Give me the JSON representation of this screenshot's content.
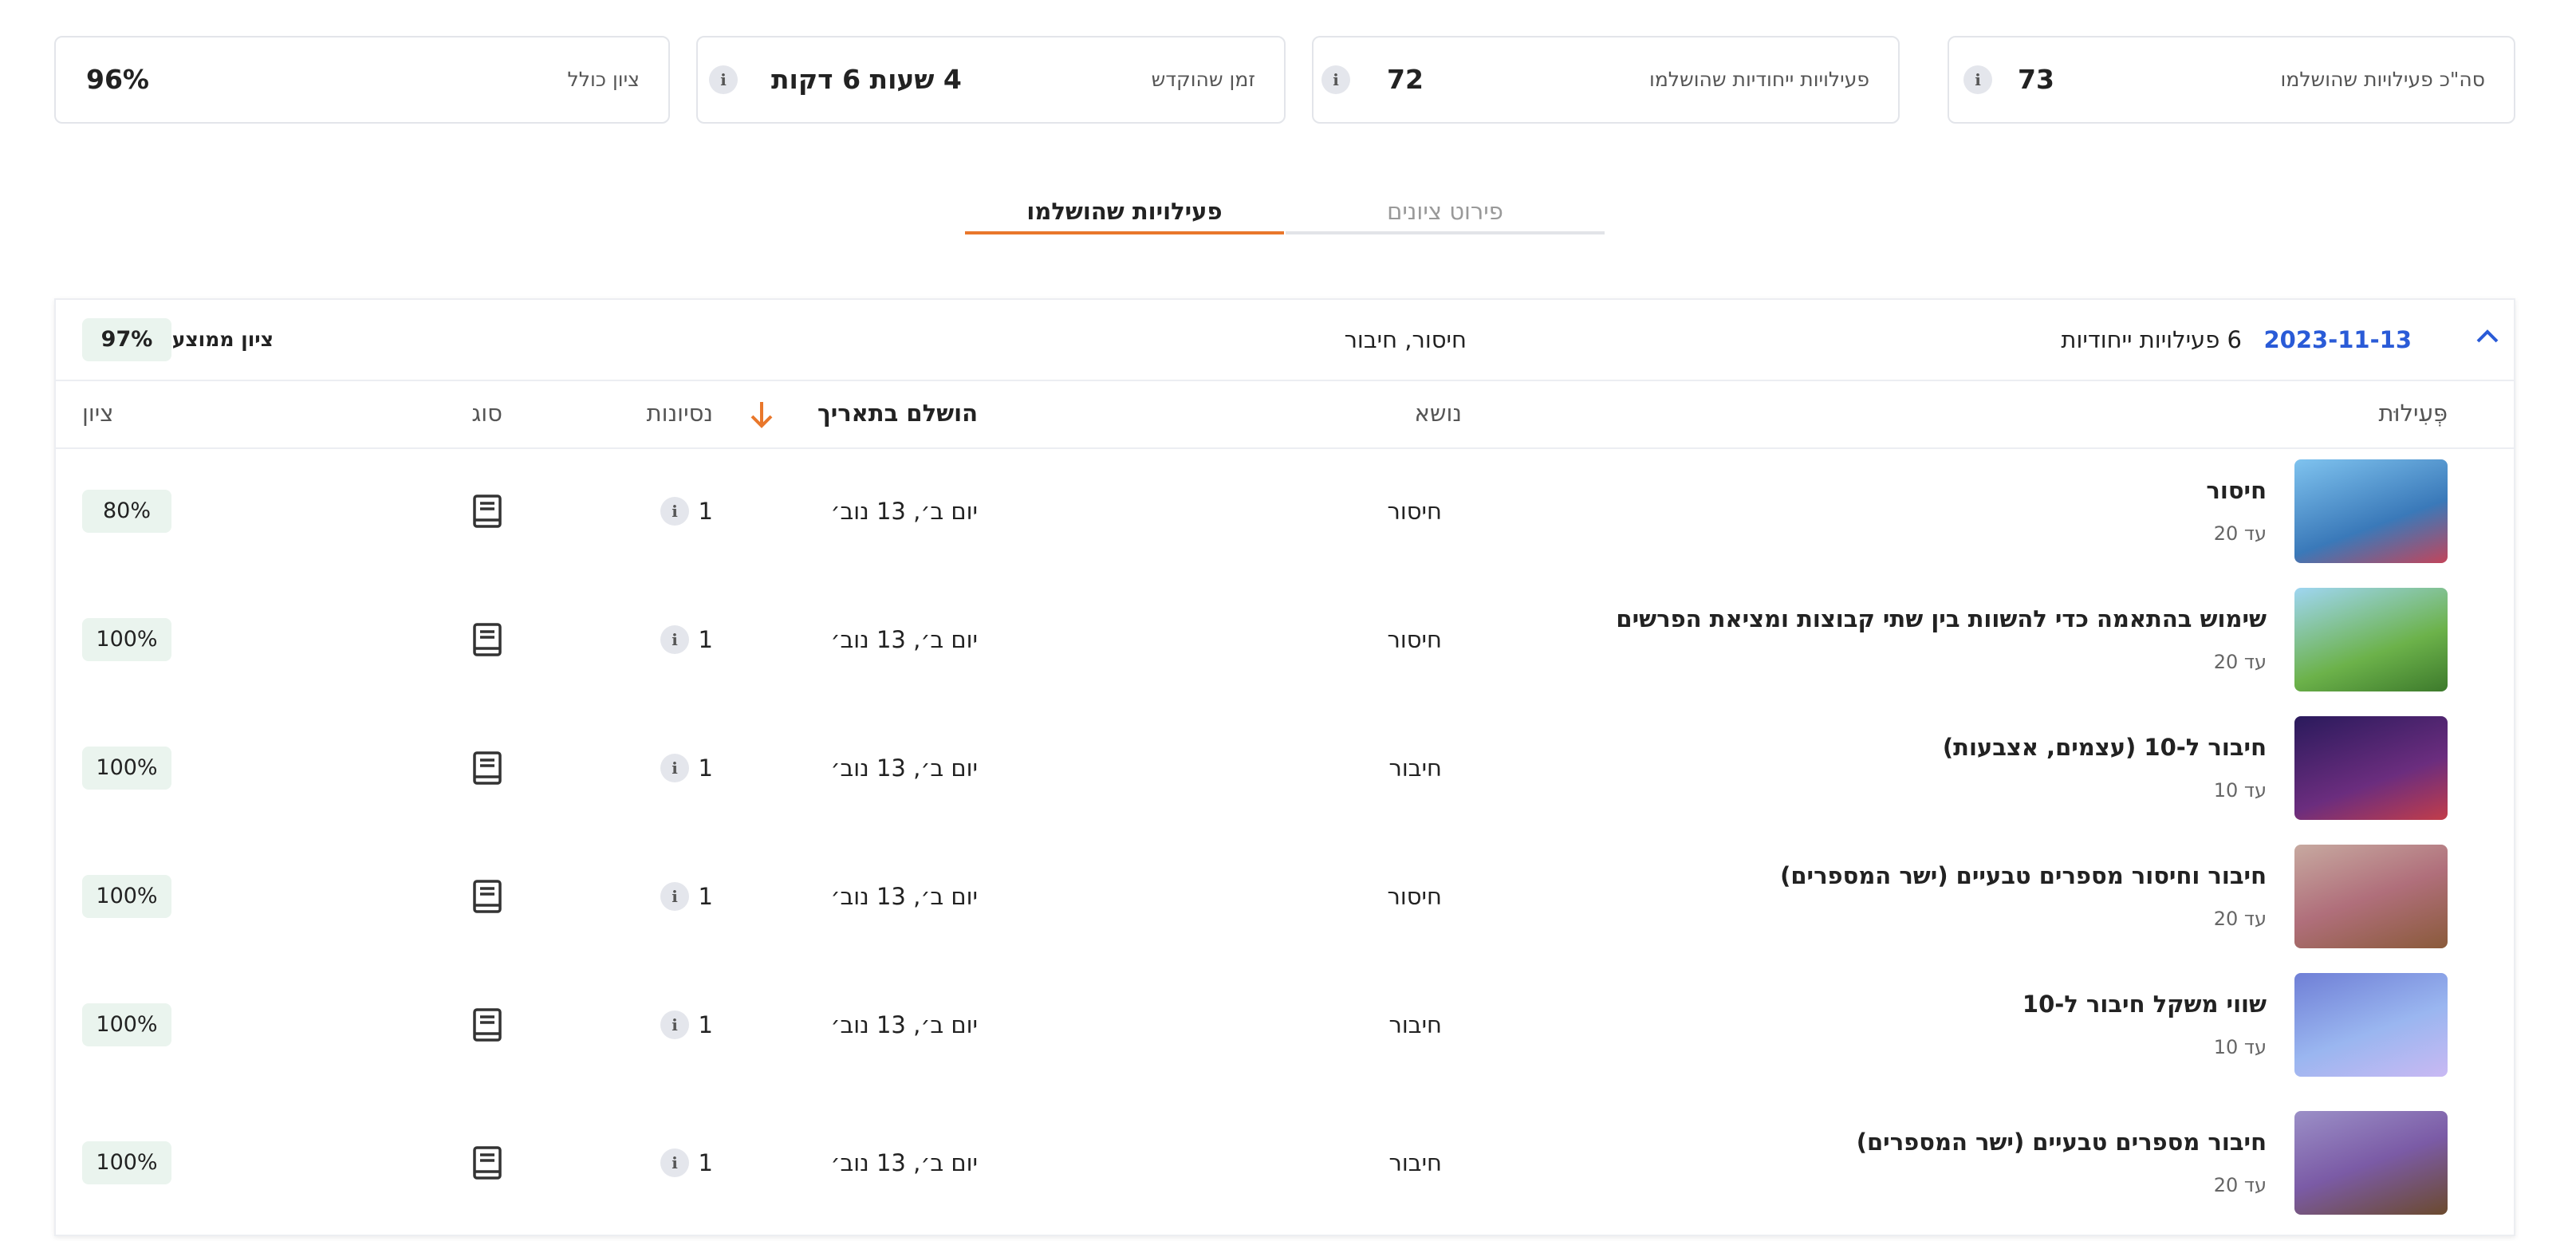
{
  "stats": [
    {
      "label": "סה\"כ פעילויות שהושלמו",
      "value": "73"
    },
    {
      "label": "פעילויות ייחודיות שהושלמו",
      "value": "72"
    },
    {
      "label": "זמן שהוקדש",
      "value": "4 שעות 6 דקות"
    },
    {
      "label": "ציון כולל",
      "value": "96%"
    }
  ],
  "tabs": [
    "פעילויות שהושלמו",
    "פירוט ציונים"
  ],
  "group": {
    "date": "2023-11-13",
    "count": "6 פעילויות ייחודיות",
    "topics": "חיסור, חיבור",
    "average_label": "ציון ממוצע",
    "average": "97%"
  },
  "columns": [
    "פְּעִילוּת",
    "נושא",
    "הושלם בתאריך",
    "נסיונות",
    "סוג",
    "ציון"
  ],
  "rows": [
    {
      "title": "חיסור",
      "subtitle": "עד 20",
      "topic": "חיסור",
      "date": "יום ב׳, 13 נוב׳",
      "attempts": "1",
      "score": "80%"
    },
    {
      "title": "שימוש בהתאמה כדי להשוות בין שתי קבוצות ומציאת הפרשים",
      "subtitle": "עד 20",
      "topic": "חיסור",
      "date": "יום ב׳, 13 נוב׳",
      "attempts": "1",
      "score": "100%"
    },
    {
      "title": "חיבור ל-10 (עצמים, אצבעות)",
      "subtitle": "עד 10",
      "topic": "חיבור",
      "date": "יום ב׳, 13 נוב׳",
      "attempts": "1",
      "score": "100%"
    },
    {
      "title": "חיבור וחיסור מספרים טבעיים (ישר המספרים)",
      "subtitle": "עד 20",
      "topic": "חיסור",
      "date": "יום ב׳, 13 נוב׳",
      "attempts": "1",
      "score": "100%"
    },
    {
      "title": "שווי משקל חיבור ל-10",
      "subtitle": "עד 10",
      "topic": "חיבור",
      "date": "יום ב׳, 13 נוב׳",
      "attempts": "1",
      "score": "100%"
    },
    {
      "title": "חיבור מספרים טבעיים (ישר המספרים)",
      "subtitle": "עד 20",
      "topic": "חיבור",
      "date": "יום ב׳, 13 נוב׳",
      "attempts": "1",
      "score": "100%"
    }
  ]
}
